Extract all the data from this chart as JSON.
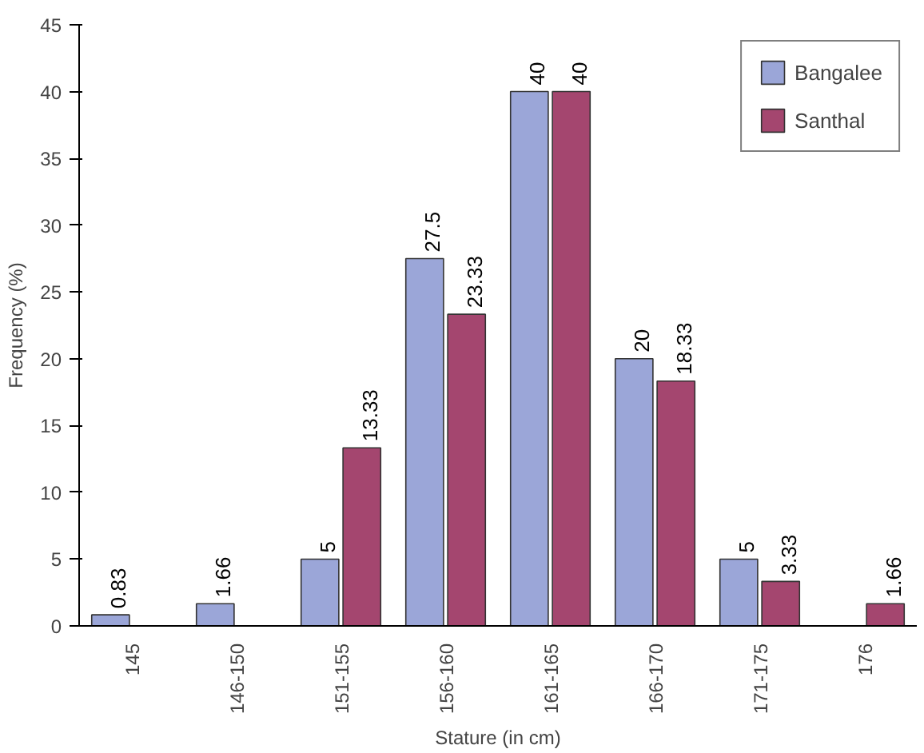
{
  "chart_data": {
    "type": "bar",
    "xlabel": "Stature (in cm)",
    "ylabel": "Frequency (%)",
    "categories": [
      "145",
      "146-150",
      "151-155",
      "156-160",
      "161-165",
      "166-170",
      "171-175",
      "176"
    ],
    "series": [
      {
        "name": "Bangalee",
        "color": "#9ba6d8",
        "values": [
          0.83,
          1.66,
          5,
          27.5,
          40,
          20,
          5,
          null
        ]
      },
      {
        "name": "Santhal",
        "color": "#a4466f",
        "values": [
          null,
          null,
          13.33,
          23.33,
          40,
          18.33,
          3.33,
          1.66
        ]
      }
    ],
    "ylim": [
      0,
      45
    ],
    "yticks": [
      0,
      5,
      10,
      15,
      20,
      25,
      30,
      35,
      40,
      45
    ],
    "data_labels": true,
    "legend": "top right",
    "grid": false
  }
}
